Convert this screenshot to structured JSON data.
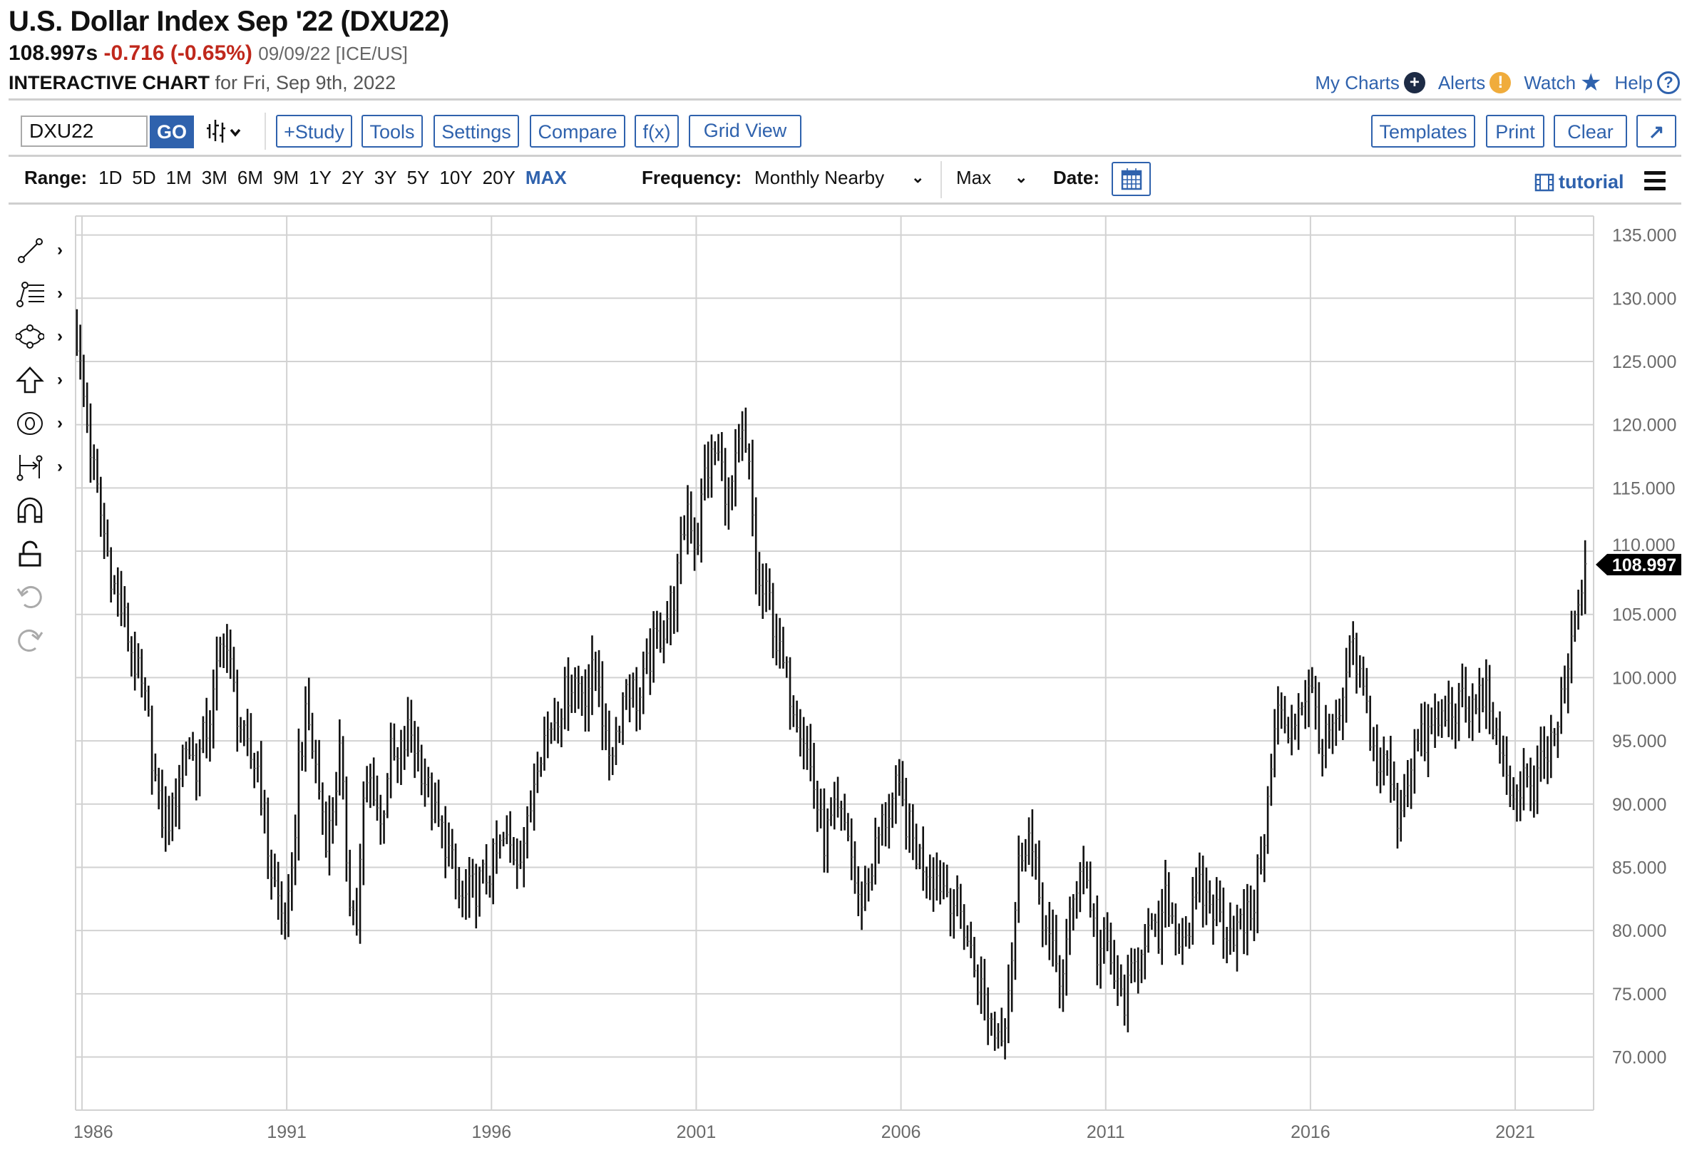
{
  "header": {
    "title": "U.S. Dollar Index Sep '22 (DXU22)",
    "last": "108.997s",
    "change": "-0.716 (-0.65%)",
    "date_exchange": "09/09/22 [ICE/US]",
    "interactive_label": "INTERACTIVE CHART",
    "for_date": "for Fri, Sep 9th, 2022"
  },
  "top_links": {
    "my_charts": "My Charts",
    "alerts": "Alerts",
    "watch": "Watch",
    "help": "Help"
  },
  "toolbar": {
    "symbol_value": "DXU22",
    "go": "GO",
    "study": "+Study",
    "tools": "Tools",
    "settings": "Settings",
    "compare": "Compare",
    "fx": "f(x)",
    "grid_view": "Grid View",
    "templates": "Templates",
    "print": "Print",
    "clear": "Clear",
    "expand": "↗"
  },
  "range_row": {
    "range_label": "Range:",
    "ranges": [
      "1D",
      "5D",
      "1M",
      "3M",
      "6M",
      "9M",
      "1Y",
      "2Y",
      "3Y",
      "5Y",
      "10Y",
      "20Y",
      "MAX"
    ],
    "active_range": "MAX",
    "frequency_label": "Frequency:",
    "frequency_value": "Monthly Nearby",
    "period_value": "Max",
    "date_label": "Date:",
    "tutorial": "tutorial"
  },
  "colors": {
    "accent": "#2f62ad",
    "negative": "#c0281c",
    "alert": "#f0ac3c",
    "dark_icon": "#1d2b45"
  },
  "chart_data": {
    "type": "ohlc",
    "frequency": "monthly",
    "title": "U.S. Dollar Index Sep '22 (DXU22)",
    "first_bar": "1985-11",
    "last_bar": "2022-09",
    "last_value": 108.997,
    "last_value_label": "108.997",
    "ylim": [
      65.8,
      136.5
    ],
    "y_ticks": [
      "135.000",
      "130.000",
      "125.000",
      "120.000",
      "115.000",
      "110.000",
      "105.000",
      "100.000",
      "95.000",
      "90.000",
      "85.000",
      "80.000",
      "75.000",
      "70.000"
    ],
    "y_tick_values": [
      135,
      130,
      125,
      120,
      115,
      110,
      105,
      100,
      95,
      90,
      85,
      80,
      75,
      70
    ],
    "x_ticks": [
      "1986",
      "1991",
      "1996",
      "2001",
      "2006",
      "2011",
      "2016",
      "2021"
    ],
    "x_tick_values": [
      1986,
      1991,
      1996,
      2001,
      2006,
      2011,
      2016,
      2021
    ],
    "grid": true,
    "approx_close_path": [
      [
        1985.87,
        127
      ],
      [
        1986.0,
        123
      ],
      [
        1986.3,
        116
      ],
      [
        1986.5,
        112
      ],
      [
        1986.8,
        107
      ],
      [
        1987.0,
        105
      ],
      [
        1987.3,
        101
      ],
      [
        1987.6,
        97
      ],
      [
        1987.9,
        89
      ],
      [
        1988.2,
        89
      ],
      [
        1988.5,
        95
      ],
      [
        1988.8,
        93
      ],
      [
        1989.2,
        98
      ],
      [
        1989.45,
        104
      ],
      [
        1989.7,
        99
      ],
      [
        1990.0,
        94
      ],
      [
        1990.3,
        93
      ],
      [
        1990.6,
        85
      ],
      [
        1990.9,
        81
      ],
      [
        1991.1,
        82
      ],
      [
        1991.3,
        94
      ],
      [
        1991.5,
        97
      ],
      [
        1991.8,
        91
      ],
      [
        1992.0,
        87
      ],
      [
        1992.3,
        94
      ],
      [
        1992.5,
        84
      ],
      [
        1992.7,
        80
      ],
      [
        1992.9,
        91
      ],
      [
        1993.1,
        92
      ],
      [
        1993.3,
        88
      ],
      [
        1993.5,
        94
      ],
      [
        1993.7,
        93
      ],
      [
        1994.0,
        96
      ],
      [
        1994.3,
        93
      ],
      [
        1994.6,
        89
      ],
      [
        1994.9,
        87
      ],
      [
        1995.25,
        82
      ],
      [
        1995.5,
        83
      ],
      [
        1995.8,
        84
      ],
      [
        1996.0,
        85
      ],
      [
        1996.3,
        87
      ],
      [
        1996.6,
        86
      ],
      [
        1996.9,
        88
      ],
      [
        1997.1,
        94
      ],
      [
        1997.4,
        96
      ],
      [
        1997.7,
        98
      ],
      [
        1998.0,
        100
      ],
      [
        1998.3,
        99
      ],
      [
        1998.6,
        101
      ],
      [
        1998.8,
        94
      ],
      [
        1999.0,
        95
      ],
      [
        1999.3,
        100
      ],
      [
        1999.6,
        98
      ],
      [
        1999.9,
        102
      ],
      [
        2000.2,
        104
      ],
      [
        2000.5,
        107
      ],
      [
        2000.8,
        114
      ],
      [
        2001.0,
        110
      ],
      [
        2001.2,
        116
      ],
      [
        2001.5,
        118
      ],
      [
        2001.8,
        114
      ],
      [
        2002.0,
        117
      ],
      [
        2002.1,
        119
      ],
      [
        2002.3,
        116
      ],
      [
        2002.5,
        107
      ],
      [
        2002.8,
        106
      ],
      [
        2003.0,
        102
      ],
      [
        2003.3,
        99
      ],
      [
        2003.6,
        96
      ],
      [
        2003.9,
        91
      ],
      [
        2004.1,
        87
      ],
      [
        2004.4,
        89
      ],
      [
        2004.7,
        88
      ],
      [
        2004.95,
        82
      ],
      [
        2005.2,
        84
      ],
      [
        2005.5,
        88
      ],
      [
        2005.9,
        91
      ],
      [
        2006.1,
        89
      ],
      [
        2006.4,
        86
      ],
      [
        2006.7,
        85
      ],
      [
        2006.95,
        84
      ],
      [
        2007.2,
        83
      ],
      [
        2007.5,
        81
      ],
      [
        2007.8,
        77
      ],
      [
        2008.0,
        75
      ],
      [
        2008.3,
        72
      ],
      [
        2008.5,
        72.5
      ],
      [
        2008.7,
        78
      ],
      [
        2008.9,
        86
      ],
      [
        2009.1,
        88
      ],
      [
        2009.3,
        84
      ],
      [
        2009.6,
        79
      ],
      [
        2009.9,
        76
      ],
      [
        2010.1,
        80
      ],
      [
        2010.4,
        86
      ],
      [
        2010.6,
        83
      ],
      [
        2010.8,
        78
      ],
      [
        2011.0,
        79
      ],
      [
        2011.3,
        75
      ],
      [
        2011.5,
        74.5
      ],
      [
        2011.7,
        77
      ],
      [
        2011.95,
        80
      ],
      [
        2012.3,
        79
      ],
      [
        2012.5,
        83
      ],
      [
        2012.7,
        80
      ],
      [
        2013.0,
        80
      ],
      [
        2013.3,
        83
      ],
      [
        2013.6,
        82
      ],
      [
        2013.9,
        80.5
      ],
      [
        2014.2,
        80
      ],
      [
        2014.4,
        80.5
      ],
      [
        2014.6,
        82
      ],
      [
        2014.8,
        86
      ],
      [
        2015.0,
        91
      ],
      [
        2015.2,
        98
      ],
      [
        2015.4,
        95
      ],
      [
        2015.6,
        97
      ],
      [
        2015.9,
        99
      ],
      [
        2016.1,
        98
      ],
      [
        2016.3,
        94
      ],
      [
        2016.5,
        96
      ],
      [
        2016.7,
        95.5
      ],
      [
        2016.9,
        101
      ],
      [
        2017.0,
        102
      ],
      [
        2017.2,
        100
      ],
      [
        2017.4,
        97
      ],
      [
        2017.6,
        93
      ],
      [
        2017.9,
        93
      ],
      [
        2018.1,
        89
      ],
      [
        2018.3,
        91
      ],
      [
        2018.5,
        94.5
      ],
      [
        2018.8,
        95
      ],
      [
        2019.0,
        96
      ],
      [
        2019.3,
        97
      ],
      [
        2019.6,
        98
      ],
      [
        2019.9,
        97
      ],
      [
        2020.2,
        99
      ],
      [
        2020.4,
        98
      ],
      [
        2020.6,
        93
      ],
      [
        2020.9,
        92
      ],
      [
        2021.0,
        90
      ],
      [
        2021.2,
        92.5
      ],
      [
        2021.4,
        90
      ],
      [
        2021.6,
        92.5
      ],
      [
        2021.8,
        94
      ],
      [
        2022.0,
        96
      ],
      [
        2022.2,
        98.5
      ],
      [
        2022.4,
        103
      ],
      [
        2022.55,
        106
      ],
      [
        2022.65,
        108.7
      ],
      [
        2022.71,
        108.997
      ]
    ]
  }
}
